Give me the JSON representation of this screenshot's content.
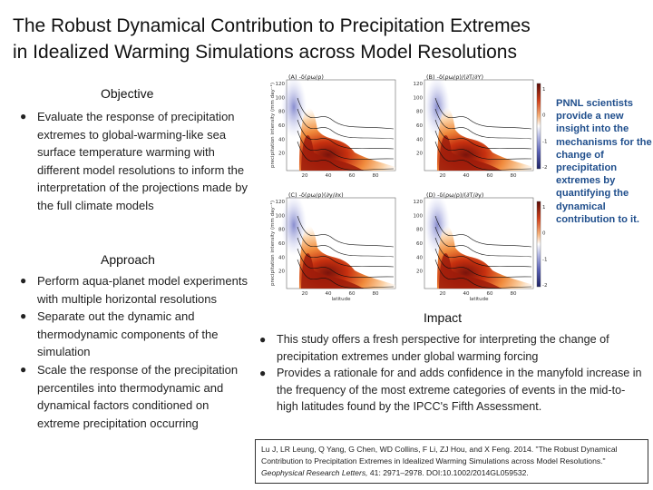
{
  "title_line1": "The Robust Dynamical Contribution to Precipitation Extremes",
  "title_line2": "in Idealized Warming Simulations across Model Resolutions",
  "objective": {
    "heading": "Objective",
    "bullets": [
      "Evaluate the response of precipitation extremes to global-warming-like sea surface temperature warming with different model resolutions to inform the interpretation of the projections made by the full climate models"
    ]
  },
  "approach": {
    "heading": "Approach",
    "bullets": [
      "Perform aqua-planet model experiments with multiple horizontal resolutions",
      "Separate out the dynamic and thermodynamic components of the simulation",
      "Scale the response of the precipitation percentiles into thermodynamic and dynamical factors conditioned on extreme precipitation occurring"
    ]
  },
  "impact": {
    "heading": "Impact",
    "bullets": [
      "This study offers a fresh perspective for interpreting the change of precipitation extremes under global warming forcing",
      "Provides a rationale for and adds confidence in the manyfold increase in the frequency of the most extreme categories of events in the mid-to-high latitudes found by the IPCC's Fifth Assessment."
    ]
  },
  "callout": "PNNL scientists provide a new insight into the mechanisms for the change of precipitation extremes by quantifying the dynamical contribution to it.",
  "citation": {
    "authors": "Lu J, LR Leung, Q Yang, G Chen, WD Collins, F Li, ZJ Hou, and X Feng. 2014.",
    "paper_title": "\"The Robust Dynamical Contribution to Precipitation Extremes in Idealized Warming Simulations across Model Resolutions.\"",
    "journal": "Geophysical Research Letters,",
    "details": "41: 2971–2978. DOI:10.1002/2014GL059532."
  },
  "figure": {
    "panels": [
      {
        "label": "(A)",
        "formula": "-δ(ρω/ρ)"
      },
      {
        "label": "(B)",
        "formula": "-δ(ρω/ρ)/(∂T/∂Y)"
      },
      {
        "label": "(C)",
        "formula": "-δ(ρω/ρ)(∂y/∂x)"
      },
      {
        "label": "(D)",
        "formula": "-δ(ρω/ρ)/(∂T/∂y)"
      }
    ],
    "ylabel": "precipitation intensity (mm day⁻¹)",
    "xlabel": "latitude",
    "yticks": [
      "120",
      "100",
      "80",
      "60",
      "40",
      "20"
    ],
    "xticks": [
      "20",
      "40",
      "60",
      "80"
    ],
    "colorbar_ticks": [
      "1",
      "0",
      "-1",
      "-2"
    ],
    "colors": {
      "hot": "#e8601c",
      "dark": "#8b1a0e",
      "cool": "#8a8fd0",
      "line": "#111111"
    }
  }
}
